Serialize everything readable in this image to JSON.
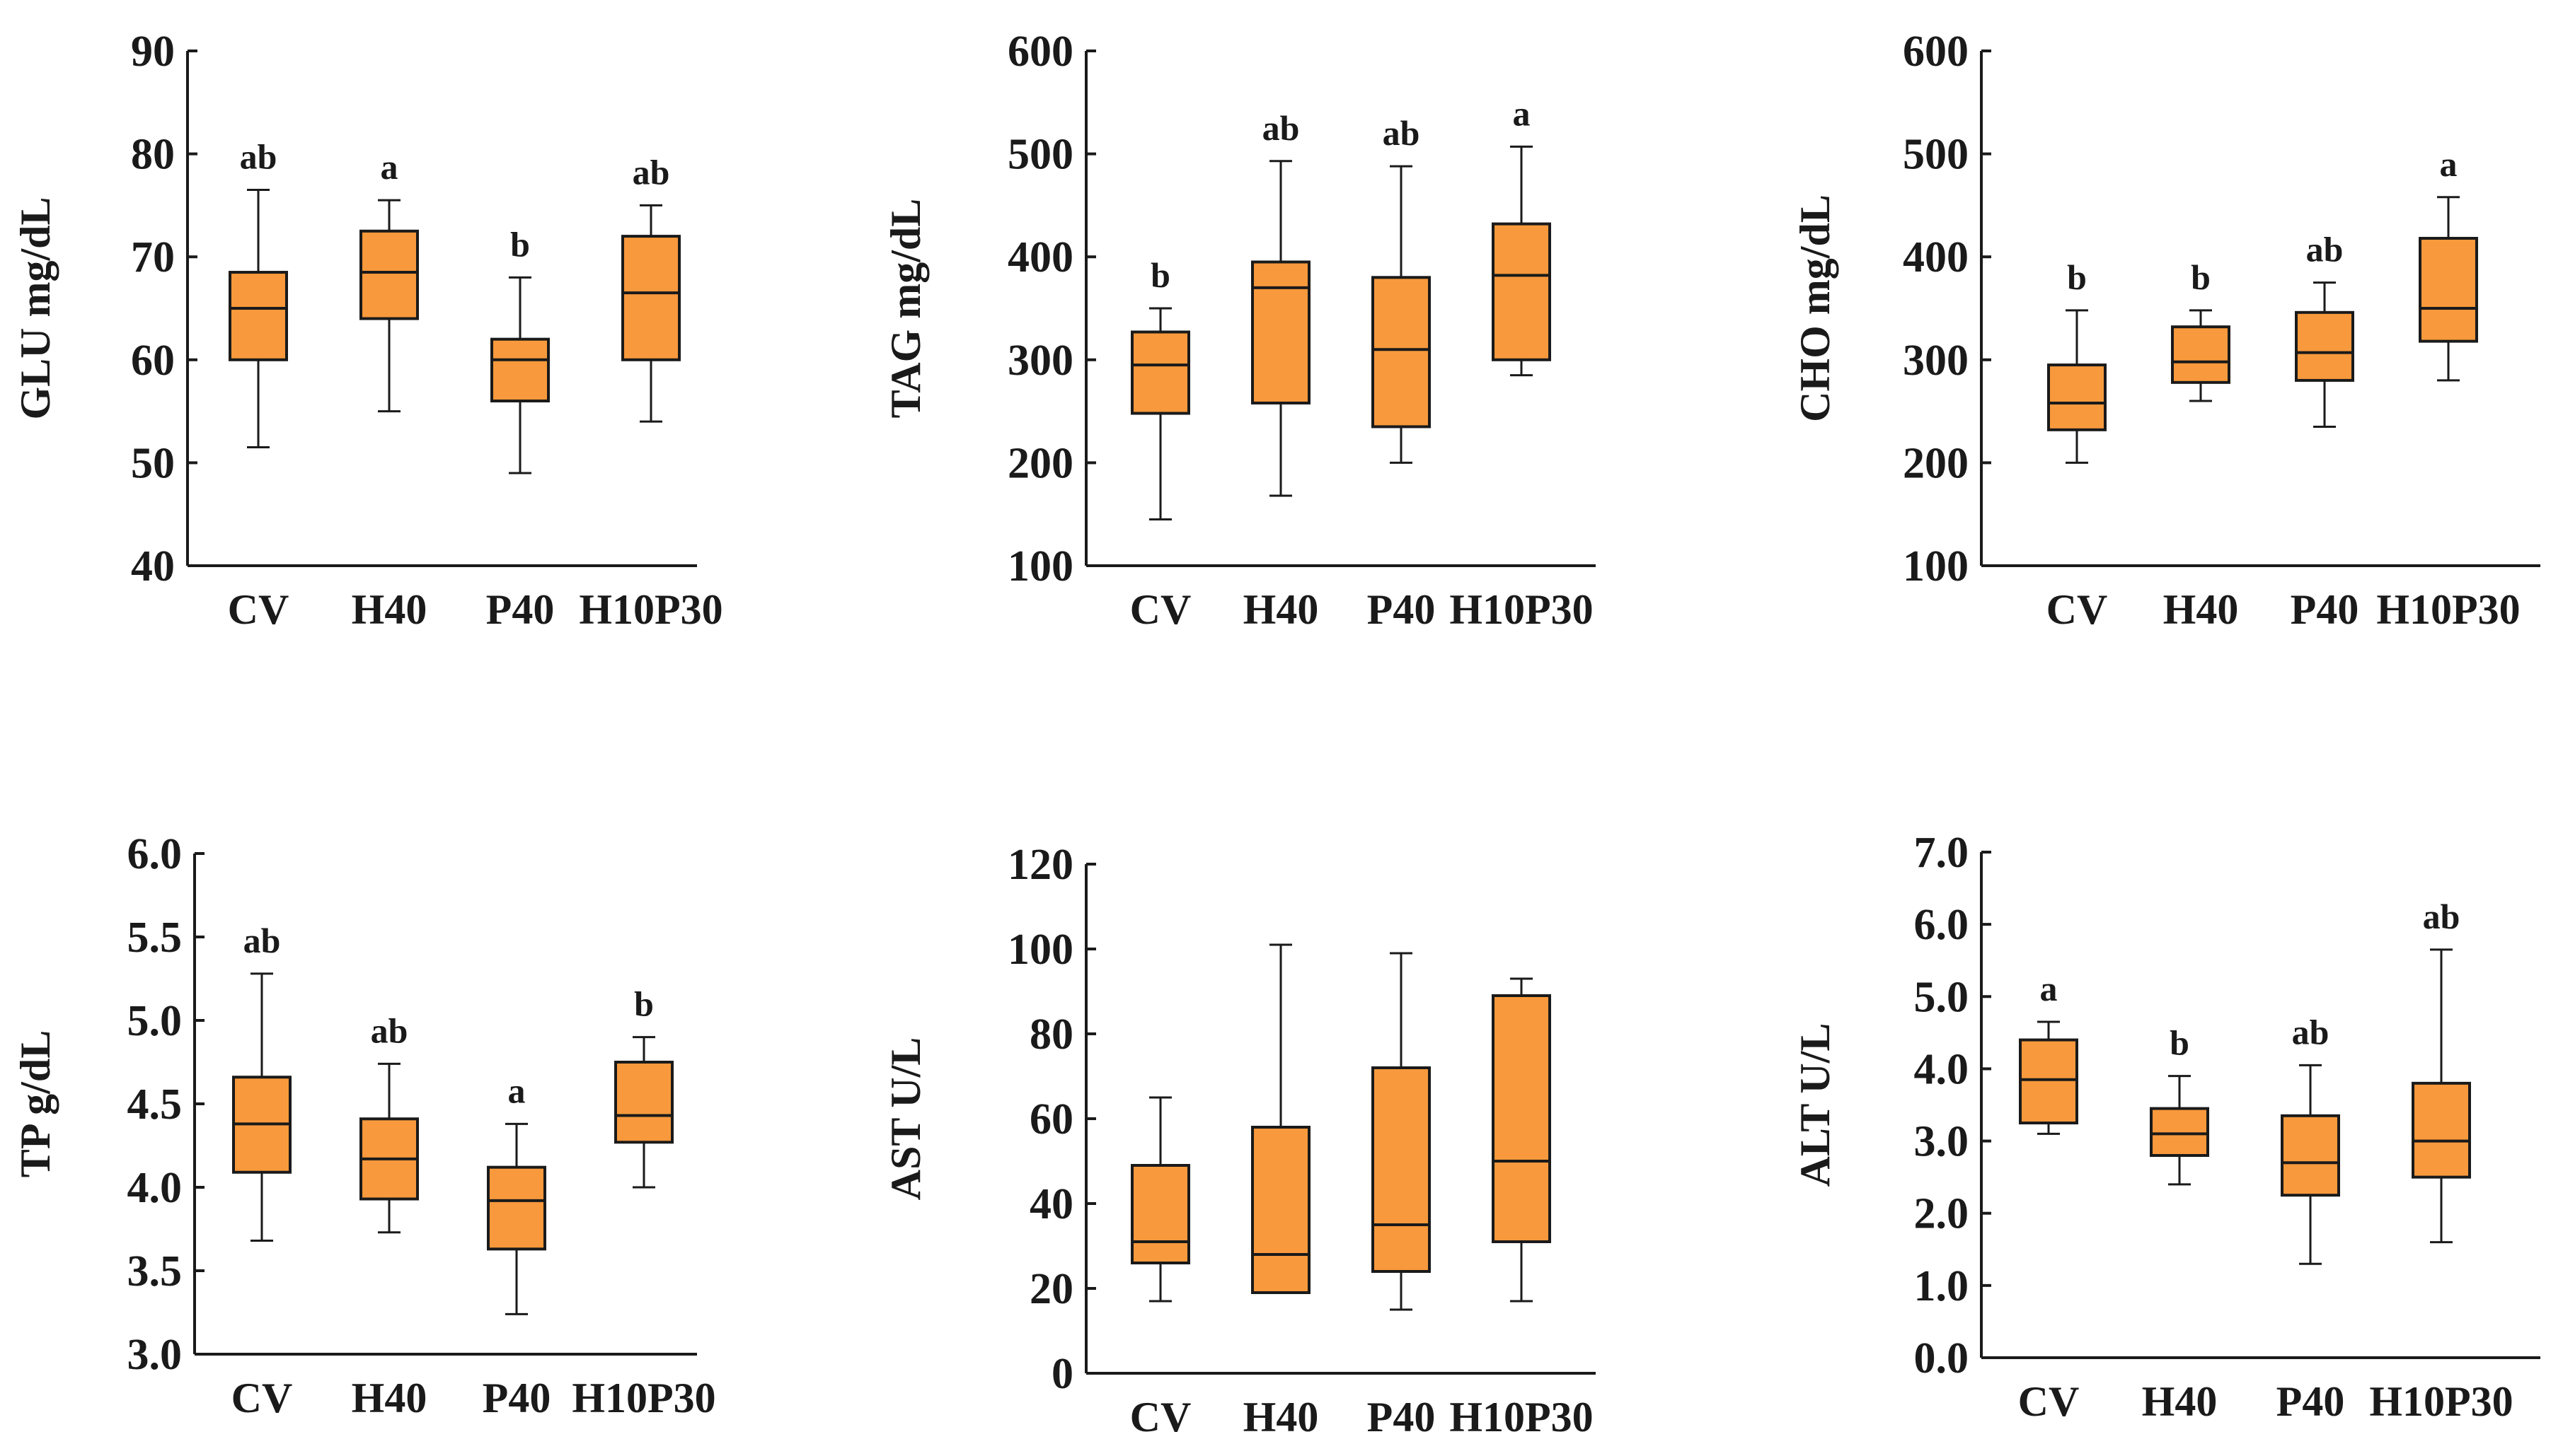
{
  "colors": {
    "box_fill": "#F7993C",
    "stroke": "#1a1a1a",
    "background": "#ffffff"
  },
  "chart_data": [
    {
      "type": "box",
      "ylabel": "GLU mg/dL",
      "ylim": [
        40,
        90
      ],
      "yticks": [
        "40",
        "50",
        "60",
        "70",
        "80",
        "90"
      ],
      "categories": [
        "CV",
        "H40",
        "P40",
        "H10P30"
      ],
      "boxes": [
        {
          "min": 51.5,
          "q1": 60,
          "median": 65,
          "q3": 68.5,
          "max": 76.5,
          "sig": "ab"
        },
        {
          "min": 55,
          "q1": 64,
          "median": 68.5,
          "q3": 72.5,
          "max": 75.5,
          "sig": "a"
        },
        {
          "min": 49,
          "q1": 56,
          "median": 60,
          "q3": 62,
          "max": 68,
          "sig": "b"
        },
        {
          "min": 54,
          "q1": 60,
          "median": 66.5,
          "q3": 72,
          "max": 75,
          "sig": "ab"
        }
      ]
    },
    {
      "type": "box",
      "ylabel": "TAG mg/dL",
      "ylim": [
        100,
        600
      ],
      "yticks": [
        "100",
        "200",
        "300",
        "400",
        "500",
        "600"
      ],
      "categories": [
        "CV",
        "H40",
        "P40",
        "H10P30"
      ],
      "boxes": [
        {
          "min": 145,
          "q1": 248,
          "median": 295,
          "q3": 327,
          "max": 350,
          "sig": "b"
        },
        {
          "min": 168,
          "q1": 258,
          "median": 370,
          "q3": 395,
          "max": 493,
          "sig": "ab"
        },
        {
          "min": 200,
          "q1": 235,
          "median": 310,
          "q3": 380,
          "max": 488,
          "sig": "ab"
        },
        {
          "min": 285,
          "q1": 300,
          "median": 382,
          "q3": 432,
          "max": 507,
          "sig": "a"
        }
      ]
    },
    {
      "type": "box",
      "ylabel": "CHO mg/dL",
      "ylim": [
        100,
        600
      ],
      "yticks": [
        "100",
        "200",
        "300",
        "400",
        "500",
        "600"
      ],
      "categories": [
        "CV",
        "H40",
        "P40",
        "H10P30"
      ],
      "boxes": [
        {
          "min": 200,
          "q1": 232,
          "median": 258,
          "q3": 295,
          "max": 348,
          "sig": "b"
        },
        {
          "min": 260,
          "q1": 278,
          "median": 298,
          "q3": 332,
          "max": 348,
          "sig": "b"
        },
        {
          "min": 235,
          "q1": 280,
          "median": 307,
          "q3": 346,
          "max": 375,
          "sig": "ab"
        },
        {
          "min": 280,
          "q1": 318,
          "median": 350,
          "q3": 418,
          "max": 458,
          "sig": "a"
        }
      ]
    },
    {
      "type": "box",
      "ylabel": "TP g/dL",
      "ylim": [
        3.0,
        6.0
      ],
      "yticks": [
        "3.0",
        "3.5",
        "4.0",
        "4.5",
        "5.0",
        "5.5",
        "6.0"
      ],
      "categories": [
        "CV",
        "H40",
        "P40",
        "H10P30"
      ],
      "boxes": [
        {
          "min": 3.68,
          "q1": 4.09,
          "median": 4.38,
          "q3": 4.66,
          "max": 5.28,
          "sig": "ab"
        },
        {
          "min": 3.73,
          "q1": 3.93,
          "median": 4.17,
          "q3": 4.41,
          "max": 4.74,
          "sig": "ab"
        },
        {
          "min": 3.24,
          "q1": 3.63,
          "median": 3.92,
          "q3": 4.12,
          "max": 4.38,
          "sig": "a"
        },
        {
          "min": 4.0,
          "q1": 4.27,
          "median": 4.43,
          "q3": 4.75,
          "max": 4.9,
          "sig": "b"
        }
      ]
    },
    {
      "type": "box",
      "ylabel": "AST U/L",
      "ylim": [
        0,
        120
      ],
      "yticks": [
        "0",
        "20",
        "40",
        "60",
        "80",
        "100",
        "120"
      ],
      "categories": [
        "CV",
        "H40",
        "P40",
        "H10P30"
      ],
      "boxes": [
        {
          "min": 17,
          "q1": 26,
          "median": 31,
          "q3": 49,
          "max": 65,
          "sig": ""
        },
        {
          "min": 19,
          "q1": 19,
          "median": 28,
          "q3": 58,
          "max": 101,
          "sig": ""
        },
        {
          "min": 15,
          "q1": 24,
          "median": 35,
          "q3": 72,
          "max": 99,
          "sig": ""
        },
        {
          "min": 17,
          "q1": 31,
          "median": 50,
          "q3": 89,
          "max": 93,
          "sig": ""
        }
      ]
    },
    {
      "type": "box",
      "ylabel": "ALT U/L",
      "ylim": [
        0.0,
        7.0
      ],
      "yticks": [
        "0.0",
        "1.0",
        "2.0",
        "3.0",
        "4.0",
        "5.0",
        "6.0",
        "7.0"
      ],
      "categories": [
        "CV",
        "H40",
        "P40",
        "H10P30"
      ],
      "boxes": [
        {
          "min": 3.1,
          "q1": 3.25,
          "median": 3.85,
          "q3": 4.4,
          "max": 4.65,
          "sig": "a"
        },
        {
          "min": 2.4,
          "q1": 2.8,
          "median": 3.1,
          "q3": 3.45,
          "max": 3.9,
          "sig": "b"
        },
        {
          "min": 1.3,
          "q1": 2.25,
          "median": 2.7,
          "q3": 3.35,
          "max": 4.05,
          "sig": "ab"
        },
        {
          "min": 1.6,
          "q1": 2.5,
          "median": 3.0,
          "q3": 3.8,
          "max": 5.65,
          "sig": "ab"
        }
      ]
    }
  ]
}
